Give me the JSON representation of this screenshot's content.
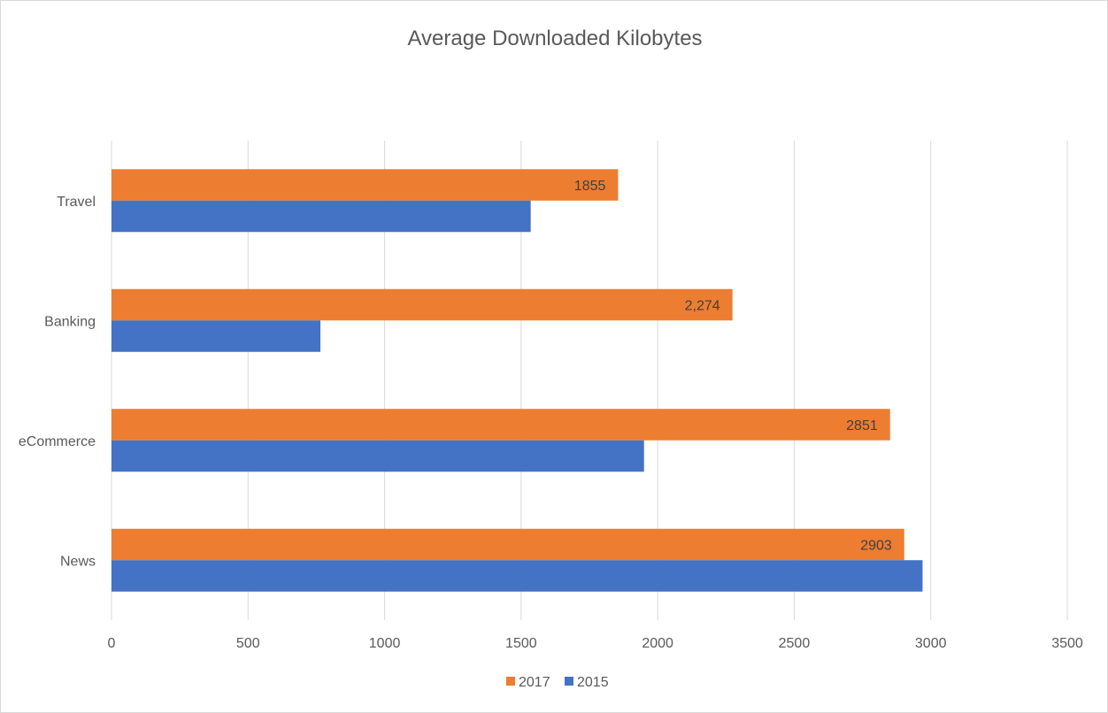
{
  "chart_data": {
    "type": "bar",
    "orientation": "horizontal",
    "title": "Average Downloaded Kilobytes",
    "categories": [
      "Travel",
      "Banking",
      "eCommerce",
      "News"
    ],
    "series": [
      {
        "name": "2017",
        "color": "#ED7D31",
        "values": [
          1855,
          2274,
          2851,
          2903
        ],
        "data_labels": [
          "1855",
          "2,274",
          "2851",
          "2903"
        ]
      },
      {
        "name": "2015",
        "color": "#4472C4",
        "values": [
          1535,
          765,
          1950,
          2970
        ],
        "data_labels": []
      }
    ],
    "xlim": [
      0,
      3500
    ],
    "x_ticks": [
      "0",
      "500",
      "1000",
      "1500",
      "2000",
      "2500",
      "3000",
      "3500"
    ],
    "grid": true,
    "legend_position": "bottom",
    "legend_order": [
      "2017",
      "2015"
    ]
  }
}
